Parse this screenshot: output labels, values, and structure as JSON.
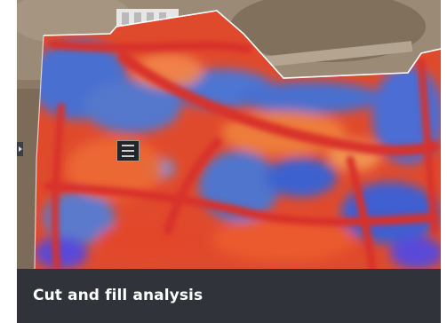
{
  "card": {
    "caption": "Cut and fill analysis",
    "map_icon": "aerial-heatmap-icon",
    "colors": {
      "cut": "#e8402a",
      "fill": "#3f67d2",
      "transition": "#f08a4a",
      "caption_bg": "#30343a",
      "caption_text": "#ffffff"
    }
  }
}
